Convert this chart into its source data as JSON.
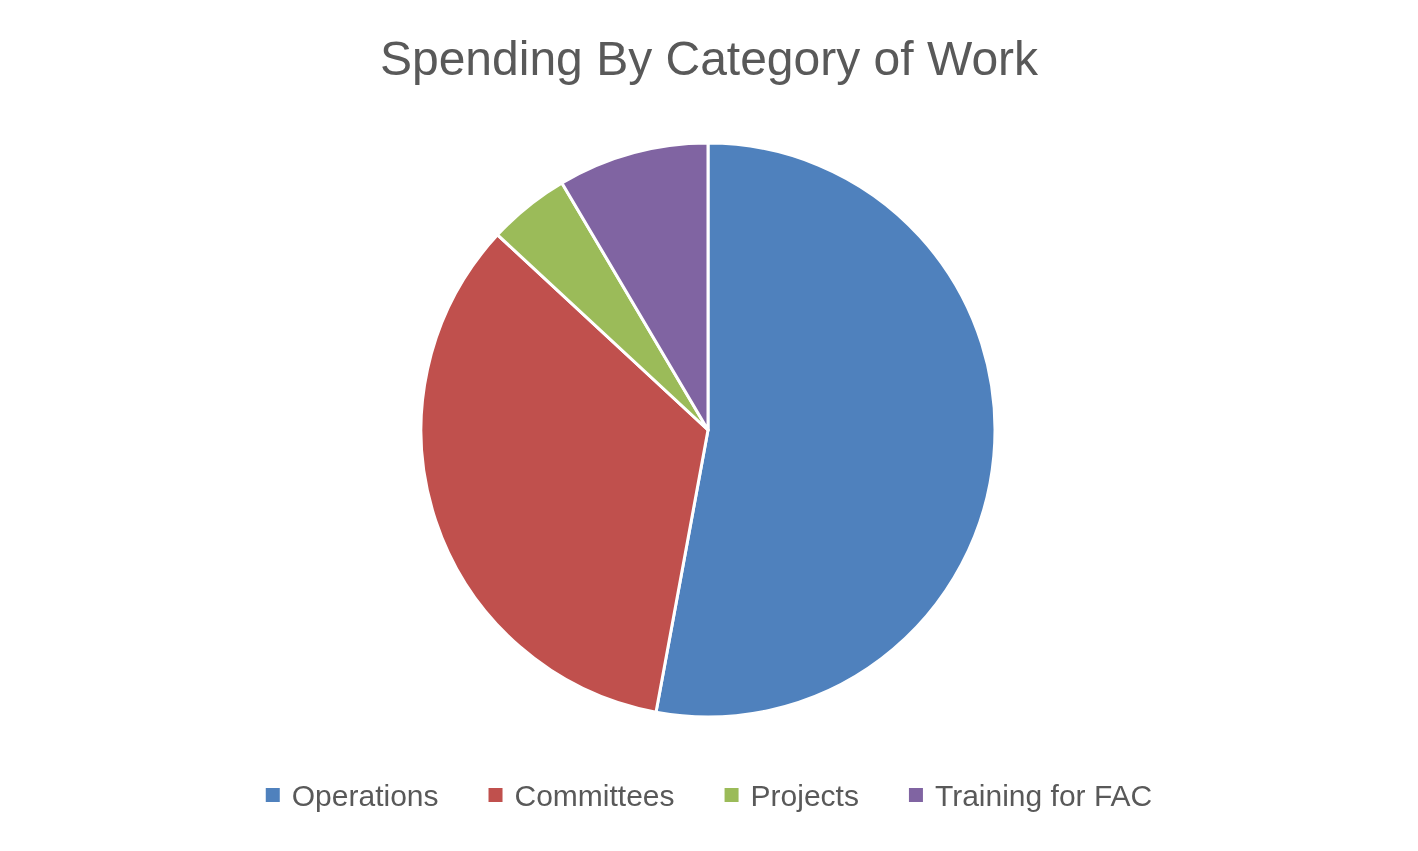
{
  "chart_data": {
    "type": "pie",
    "title": "Spending By Category of Work",
    "categories": [
      "Operations",
      "Committees",
      "Projects",
      "Training for FAC"
    ],
    "values": [
      52.9,
      34.0,
      4.6,
      8.5
    ],
    "colors": [
      "#4f81bd",
      "#c0504d",
      "#9bbb59",
      "#8064a2"
    ],
    "legend": "bottom"
  }
}
